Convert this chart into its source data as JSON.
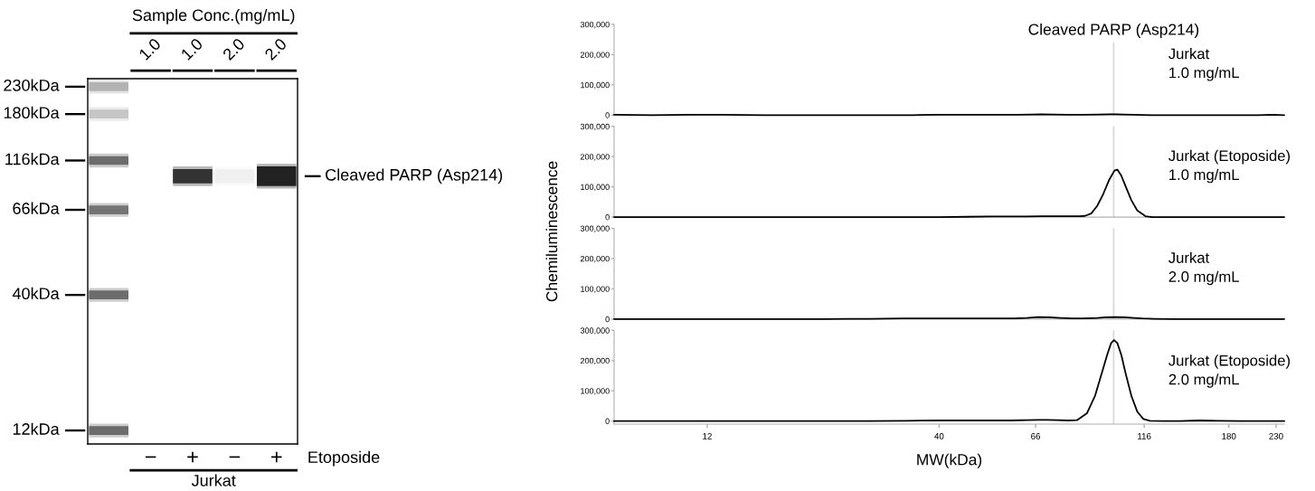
{
  "chart_data": [
    {
      "type": "other",
      "title": "Sample Conc.(mg/mL)",
      "categories": [
        null,
        "1.0",
        "1.0",
        "2.0",
        "2.0"
      ],
      "xlabel": "Jurkat",
      "annotations": [
        "230kDa",
        "180kDa",
        "116kDa",
        "66kDa",
        "40kDa",
        "12kDa",
        "Cleaved PARP (Asp214)",
        "−",
        "+",
        "−",
        "+",
        "Etoposide"
      ]
    },
    {
      "type": "line",
      "log": "x",
      "xlim": [
        7.4,
        240
      ],
      "ylim": [
        0,
        300000
      ],
      "tick_labels": "y",
      "yticks": [
        0,
        {
          "value": 100000,
          "label": "100,000"
        },
        {
          "value": 200000,
          "label": "200,000"
        },
        {
          "value": 300000,
          "label": "300,000"
        }
      ],
      "ref_lines": [
        {
          "axis": "x",
          "value": 99,
          "label": "Cleaved PARP (Asp214)",
          "color": "#d9d9d9"
        }
      ],
      "series": [
        {
          "name": "Jurkat\n1.0 mg/mL",
          "color": "#000000",
          "x": [
            7.4,
            9,
            11,
            13,
            16,
            20,
            25,
            30,
            35,
            40,
            45,
            50,
            55,
            60,
            65,
            68,
            72,
            78,
            85,
            92,
            97,
            100,
            104,
            110,
            120,
            135,
            150,
            170,
            190,
            210,
            225,
            240
          ],
          "values": [
            1000,
            0,
            1000,
            1000,
            0,
            0,
            0,
            0,
            0,
            1000,
            1000,
            1000,
            1000,
            1000,
            2000,
            3000,
            2000,
            1000,
            1000,
            2000,
            3000,
            3000,
            2000,
            1000,
            0,
            0,
            0,
            0,
            0,
            0,
            1000,
            0
          ]
        }
      ]
    },
    {
      "type": "line",
      "log": "x",
      "xlim": [
        7.4,
        240
      ],
      "ylim": [
        0,
        300000
      ],
      "tick_labels": "y",
      "ylabel": "Chemiluminescence",
      "yticks": [
        0,
        {
          "value": 100000,
          "label": "100,000"
        },
        {
          "value": 200000,
          "label": "200,000"
        },
        {
          "value": 300000,
          "label": "300,000"
        }
      ],
      "ref_lines": [
        {
          "axis": "x",
          "value": 99,
          "color": "#d9d9d9"
        }
      ],
      "series": [
        {
          "name": "Jurkat (Etoposide)\n1.0 mg/mL",
          "color": "#000000",
          "x": [
            7.4,
            10,
            13,
            17,
            22,
            28,
            35,
            40,
            46,
            52,
            58,
            63,
            68,
            72,
            76,
            80,
            83,
            85.3,
            88.1,
            90.8,
            93.7,
            96.7,
            99.4,
            100.9,
            103.0,
            105.2,
            108.5,
            111.9,
            116.7,
            121,
            130,
            145,
            165,
            185,
            210,
            240
          ],
          "values": [
            0,
            0,
            0,
            0,
            0,
            0,
            0,
            0,
            1000,
            2000,
            2000,
            2000,
            3000,
            3000,
            3000,
            3000,
            3000,
            4000,
            12000,
            36000,
            75000,
            123000,
            154000,
            157000,
            137000,
            104000,
            56000,
            22000,
            3000,
            0,
            0,
            0,
            0,
            0,
            0,
            0
          ]
        }
      ]
    },
    {
      "type": "line",
      "log": "x",
      "xlim": [
        7.4,
        240
      ],
      "ylim": [
        0,
        300000
      ],
      "tick_labels": "y",
      "yticks": [
        0,
        {
          "value": 100000,
          "label": "100,000"
        },
        {
          "value": 200000,
          "label": "200,000"
        },
        {
          "value": 300000,
          "label": "300,000"
        }
      ],
      "ref_lines": [
        {
          "axis": "x",
          "value": 99,
          "color": "#d9d9d9"
        }
      ],
      "series": [
        {
          "name": "Jurkat\n2.0 mg/mL",
          "color": "#000000",
          "x": [
            7.4,
            10,
            13,
            17,
            22,
            25,
            28,
            33,
            38,
            44,
            50,
            55,
            59,
            63,
            67,
            71,
            75,
            80,
            84,
            88,
            91,
            95,
            100,
            105,
            110,
            115,
            122,
            135,
            150,
            170,
            190,
            215,
            240
          ],
          "values": [
            0,
            0,
            0,
            0,
            0,
            1000,
            1000,
            2000,
            2000,
            2000,
            2000,
            2000,
            2000,
            4000,
            7000,
            6000,
            4000,
            2000,
            2000,
            3000,
            4000,
            6000,
            7000,
            6000,
            4000,
            2000,
            1000,
            0,
            0,
            0,
            0,
            0,
            0
          ]
        }
      ]
    },
    {
      "type": "line",
      "log": "x",
      "xlim": [
        7.4,
        240
      ],
      "ylim": [
        -10000,
        300000
      ],
      "xlabel": "MW(kDa)",
      "xticks": [
        12,
        40,
        66,
        116,
        180,
        230
      ],
      "yticks": [
        0,
        {
          "value": 100000,
          "label": "100,000"
        },
        {
          "value": 200000,
          "label": "200,000"
        },
        {
          "value": 300000,
          "label": "300,000"
        }
      ],
      "ref_lines": [
        {
          "axis": "x",
          "value": 99,
          "color": "#d9d9d9"
        }
      ],
      "series": [
        {
          "name": "Jurkat (Etoposide)\n2.0 mg/mL",
          "color": "#000000",
          "x": [
            7.4,
            10,
            13,
            17,
            22,
            28,
            34,
            40,
            46,
            52,
            58,
            63,
            67,
            70,
            74,
            78,
            81.8,
            86.2,
            89.9,
            92.8,
            95.7,
            97.7,
            99.2,
            100.9,
            103.0,
            105.2,
            108.5,
            111.9,
            115.5,
            119.5,
            128,
            140,
            155,
            170,
            190,
            215,
            240
          ],
          "values": [
            0,
            0,
            0,
            0,
            0,
            0,
            1000,
            2000,
            2000,
            2000,
            2000,
            3000,
            4000,
            4000,
            3000,
            2000,
            3000,
            26000,
            84000,
            152000,
            219000,
            258000,
            268000,
            258000,
            219000,
            161000,
            84000,
            31000,
            7000,
            1000,
            0,
            0,
            2000,
            1000,
            0,
            0,
            0
          ]
        }
      ]
    }
  ]
}
